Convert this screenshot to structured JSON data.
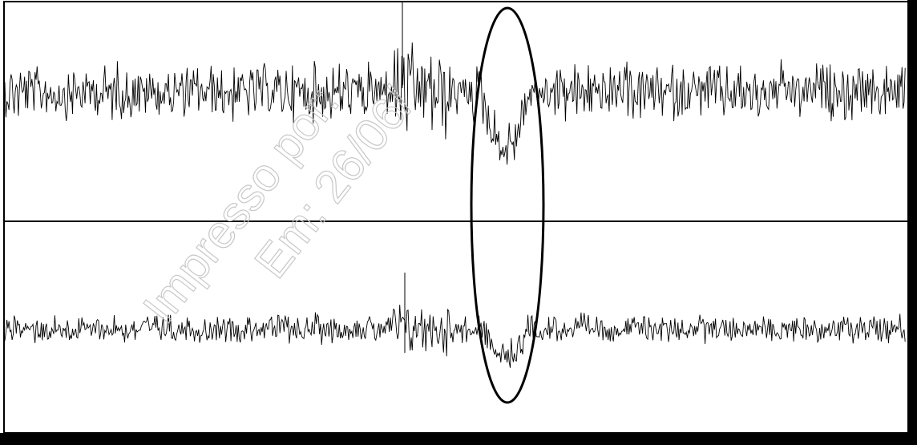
{
  "watermark": {
    "line1": "Impresso por:",
    "line2": "Em: 26/06/"
  }
}
